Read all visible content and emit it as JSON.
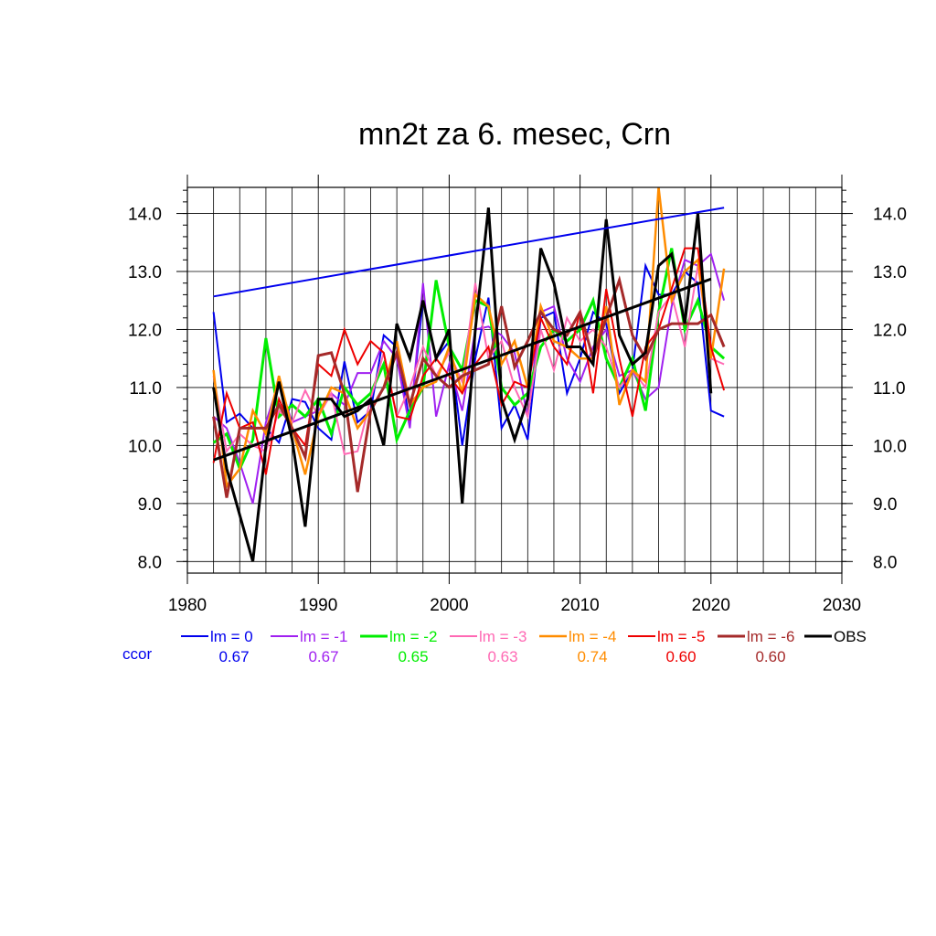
{
  "chart_data": {
    "type": "line",
    "title": "mn2t za 6. mesec, Crn",
    "xlim": [
      1980,
      2030
    ],
    "ylim": [
      7.8,
      14.45
    ],
    "x_ticks": [
      "1980",
      "1990",
      "2000",
      "2010",
      "2020",
      "2030"
    ],
    "y_ticks": [
      "8.0",
      "9.0",
      "10.0",
      "11.0",
      "12.0",
      "13.0",
      "14.0"
    ],
    "grid": true,
    "legend_position": "bottom",
    "ccor_label": "ccor",
    "years": [
      1982,
      1983,
      1984,
      1985,
      1986,
      1987,
      1988,
      1989,
      1990,
      1991,
      1992,
      1993,
      1994,
      1995,
      1996,
      1997,
      1998,
      1999,
      2000,
      2001,
      2002,
      2003,
      2004,
      2005,
      2006,
      2007,
      2008,
      2009,
      2010,
      2011,
      2012,
      2013,
      2014,
      2015,
      2016,
      2017,
      2018,
      2019,
      2020,
      2021
    ],
    "series": [
      {
        "name": "lm = 0",
        "ccor": "0.67",
        "color": "#0000ee",
        "width": 2,
        "values": [
          12.3,
          10.4,
          10.55,
          10.3,
          10.3,
          10.05,
          10.8,
          10.75,
          10.3,
          10.1,
          11.45,
          10.4,
          10.6,
          11.9,
          11.7,
          10.4,
          12.5,
          11.5,
          11.8,
          10.0,
          11.5,
          12.55,
          10.3,
          10.7,
          10.1,
          12.2,
          12.3,
          10.9,
          11.5,
          12.3,
          12.1,
          10.9,
          11.3,
          13.1,
          12.6,
          12.6,
          13.0,
          12.8,
          10.6,
          10.5
        ]
      },
      {
        "name": "lm = -1",
        "ccor": "0.67",
        "color": "#a020f0",
        "width": 2,
        "values": [
          10.5,
          10.3,
          9.7,
          9.0,
          10.4,
          11.1,
          10.4,
          10.5,
          10.6,
          10.9,
          10.7,
          11.25,
          11.25,
          11.8,
          11.5,
          10.3,
          12.8,
          10.5,
          11.4,
          10.6,
          12.0,
          12.05,
          11.9,
          11.6,
          10.5,
          12.3,
          12.4,
          11.5,
          11.1,
          11.7,
          12.0,
          11.2,
          11.3,
          10.8,
          11.0,
          12.4,
          13.2,
          13.1,
          13.3,
          12.5
        ]
      },
      {
        "name": "lm = -2",
        "ccor": "0.65",
        "color": "#00ee00",
        "width": 3,
        "values": [
          10.05,
          10.2,
          9.6,
          10.1,
          11.85,
          10.5,
          10.7,
          10.5,
          10.8,
          10.2,
          11.0,
          10.7,
          10.9,
          11.4,
          10.1,
          10.6,
          11.0,
          12.85,
          11.7,
          11.3,
          12.5,
          12.4,
          11.0,
          10.7,
          10.9,
          11.7,
          12.0,
          11.8,
          12.0,
          12.5,
          11.5,
          11.0,
          11.5,
          10.6,
          12.3,
          13.4,
          12.0,
          12.5,
          11.7,
          11.5
        ]
      },
      {
        "name": "lm = -3",
        "ccor": "0.63",
        "color": "#ff69b4",
        "width": 2,
        "values": [
          11.2,
          9.9,
          10.2,
          10.0,
          9.9,
          10.6,
          10.4,
          10.95,
          10.5,
          10.9,
          9.85,
          9.9,
          10.8,
          11.6,
          10.5,
          11.0,
          11.7,
          11.2,
          11.6,
          11.1,
          12.8,
          11.5,
          11.8,
          11.0,
          10.5,
          12.0,
          11.3,
          12.2,
          11.8,
          12.0,
          11.7,
          11.0,
          11.3,
          11.0,
          12.3,
          12.6,
          11.7,
          13.1,
          11.5,
          11.4
        ]
      },
      {
        "name": "lm = -4",
        "ccor": "0.74",
        "color": "#ff8c00",
        "width": 2.5,
        "values": [
          11.3,
          9.3,
          9.6,
          10.6,
          10.2,
          11.2,
          10.3,
          9.5,
          10.5,
          11.0,
          10.9,
          10.3,
          10.6,
          11.0,
          11.8,
          10.7,
          11.0,
          11.1,
          11.7,
          10.9,
          12.6,
          12.4,
          11.4,
          11.8,
          11.0,
          12.4,
          11.8,
          11.7,
          11.5,
          11.5,
          12.4,
          10.7,
          11.3,
          11.1,
          14.45,
          12.5,
          13.0,
          13.2,
          11.5,
          13.05
        ]
      },
      {
        "name": "lm = -5",
        "ccor": "0.60",
        "color": "#ee0000",
        "width": 2,
        "values": [
          9.7,
          10.9,
          10.3,
          10.4,
          9.5,
          10.8,
          10.3,
          10.0,
          11.4,
          11.2,
          12.0,
          11.4,
          11.8,
          11.6,
          10.5,
          10.45,
          11.2,
          11.5,
          11.2,
          10.9,
          11.4,
          11.7,
          10.7,
          11.1,
          11.0,
          12.2,
          11.7,
          11.4,
          12.3,
          10.9,
          12.7,
          11.5,
          10.5,
          11.7,
          12.0,
          12.7,
          13.4,
          13.4,
          11.7,
          10.95
        ]
      },
      {
        "name": "lm = -6",
        "ccor": "0.60",
        "color": "#a52a2a",
        "width": 3,
        "values": [
          10.5,
          9.1,
          10.3,
          10.3,
          10.3,
          10.7,
          10.3,
          9.8,
          11.55,
          11.6,
          10.9,
          9.2,
          10.6,
          11.0,
          11.6,
          10.7,
          11.5,
          11.2,
          11.0,
          11.2,
          11.3,
          11.4,
          12.4,
          11.35,
          11.8,
          12.3,
          12.0,
          11.9,
          12.3,
          11.5,
          12.2,
          12.85,
          11.9,
          11.5,
          12.0,
          12.1,
          12.1,
          12.1,
          12.25,
          11.7
        ]
      },
      {
        "name": "OBS",
        "ccor": "",
        "color": "#000000",
        "width": 3,
        "values": [
          11.0,
          9.6,
          8.8,
          8.0,
          10.0,
          11.1,
          10.1,
          8.6,
          10.8,
          10.8,
          10.5,
          10.6,
          10.8,
          10.0,
          12.1,
          11.5,
          12.5,
          11.5,
          12.0,
          9.0,
          12.0,
          14.1,
          10.8,
          10.1,
          10.8,
          13.4,
          12.8,
          11.7,
          11.7,
          11.4,
          13.9,
          11.9,
          11.4,
          11.6,
          13.1,
          13.3,
          12.1,
          14.0,
          10.9,
          null
        ]
      }
    ],
    "trend_lines": [
      {
        "color": "#0000ee",
        "width": 2,
        "x": [
          1982,
          2021
        ],
        "y": [
          12.57,
          14.1
        ]
      },
      {
        "color": "#000000",
        "width": 3,
        "x": [
          1982,
          2020
        ],
        "y": [
          9.75,
          12.87
        ]
      }
    ]
  }
}
